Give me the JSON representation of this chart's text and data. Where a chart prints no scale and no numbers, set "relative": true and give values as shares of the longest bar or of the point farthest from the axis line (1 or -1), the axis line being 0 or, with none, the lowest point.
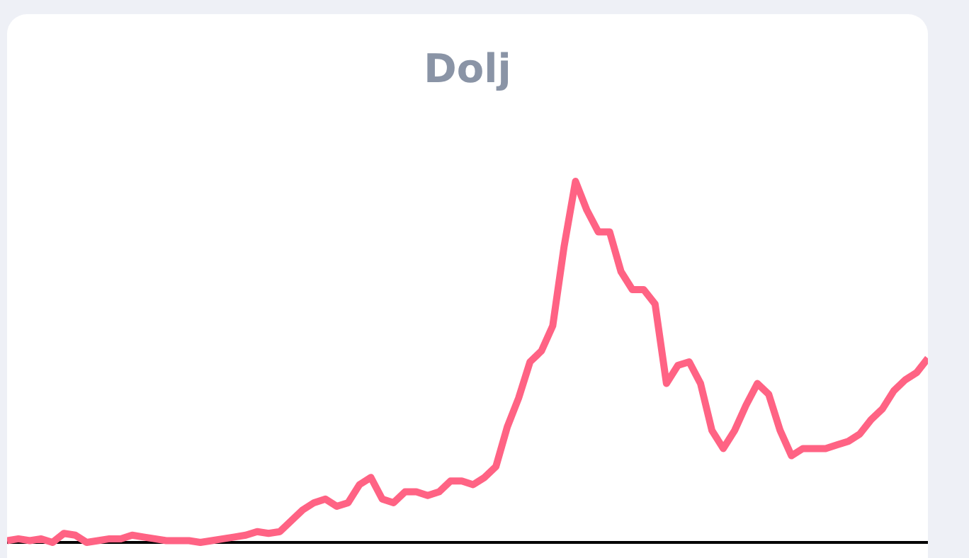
{
  "chart_data": {
    "type": "line",
    "title": "Dolj",
    "relative": true,
    "legend": false,
    "grid": false,
    "marker": "none",
    "line_style": "solid",
    "categories": [
      null,
      null,
      null,
      null,
      null,
      null,
      null,
      null,
      null,
      null,
      null,
      null,
      null,
      null,
      null,
      null,
      null,
      null,
      null,
      null,
      null,
      null,
      null,
      null,
      null,
      null,
      null,
      null,
      null,
      null,
      null,
      null,
      null,
      null,
      null,
      null,
      null,
      null,
      null,
      null,
      null,
      null,
      null,
      null,
      null,
      null,
      null,
      null,
      null,
      null,
      null,
      null,
      null,
      null,
      null,
      null,
      null,
      null,
      null,
      null,
      null,
      null,
      null,
      null,
      null,
      null,
      null,
      null,
      null,
      null,
      null,
      null,
      null,
      null,
      null,
      null,
      null,
      null,
      null,
      null,
      null,
      null
    ],
    "series": [
      {
        "color": "#ff6384",
        "values": [
          0.005,
          0.01,
          0.005,
          0.01,
          0.0,
          0.025,
          0.02,
          0.0,
          0.005,
          0.01,
          0.01,
          0.02,
          0.015,
          0.01,
          0.005,
          0.005,
          0.005,
          0.0,
          0.005,
          0.01,
          0.015,
          0.02,
          0.03,
          0.025,
          0.03,
          0.06,
          0.09,
          0.11,
          0.12,
          0.1,
          0.11,
          0.16,
          0.18,
          0.12,
          0.11,
          0.14,
          0.14,
          0.13,
          0.14,
          0.17,
          0.17,
          0.16,
          0.18,
          0.21,
          0.32,
          0.4,
          0.5,
          0.53,
          0.6,
          0.82,
          1.0,
          0.92,
          0.86,
          0.86,
          0.75,
          0.7,
          0.7,
          0.66,
          0.44,
          0.49,
          0.5,
          0.44,
          0.31,
          0.26,
          0.31,
          0.38,
          0.44,
          0.41,
          0.31,
          0.24,
          0.26,
          0.26,
          0.26,
          0.27,
          0.28,
          0.3,
          0.34,
          0.37,
          0.42,
          0.45,
          0.47,
          0.51
        ]
      }
    ]
  }
}
